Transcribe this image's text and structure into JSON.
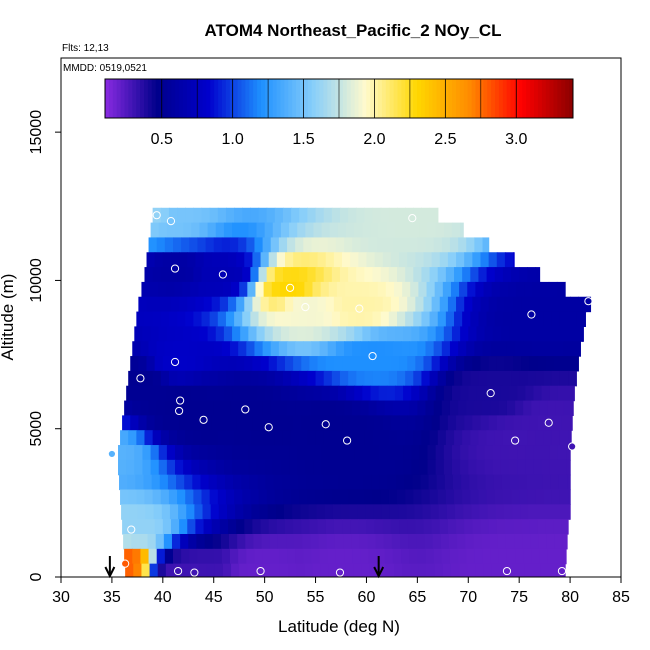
{
  "chart_data": {
    "type": "heatmap",
    "title": "ATOM4 Northeast_Pacific_2 NOy_CL",
    "flights_label": "Flts: 12,13",
    "mmdd_label": "MMDD: 0519,0521",
    "xlabel": "Latitude (deg N)",
    "ylabel": "Altitude (m)",
    "xlim": [
      30,
      85
    ],
    "ylim": [
      0,
      17500
    ],
    "x_ticks": [
      "30",
      "35",
      "40",
      "45",
      "50",
      "55",
      "60",
      "65",
      "70",
      "75",
      "80",
      "85"
    ],
    "y_ticks": [
      "0",
      "5000",
      "10000",
      "15000"
    ],
    "colorbar": {
      "range": [
        0.1,
        3.4
      ],
      "ticks": [
        "0.5",
        "1.0",
        "1.5",
        "2.0",
        "2.5",
        "3.0"
      ],
      "colors": [
        "#8a2be2",
        "#00008b",
        "#0000cd",
        "#1e90ff",
        "#87cefa",
        "#fffacd",
        "#ffd700",
        "#ff8c00",
        "#ff0000",
        "#8b0000"
      ]
    },
    "arrows_lat": [
      34.8,
      61.2
    ],
    "curtain_rows": [
      {
        "alt": 12200,
        "lat_start": 39.0,
        "lat_end": 67.0
      },
      {
        "alt": 11700,
        "lat_start": 38.8,
        "lat_end": 69.5
      },
      {
        "alt": 11200,
        "lat_start": 38.6,
        "lat_end": 72.0
      },
      {
        "alt": 10700,
        "lat_start": 38.4,
        "lat_end": 74.5
      },
      {
        "alt": 10200,
        "lat_start": 38.2,
        "lat_end": 77.0
      },
      {
        "alt": 9700,
        "lat_start": 37.9,
        "lat_end": 79.5
      },
      {
        "alt": 9200,
        "lat_start": 37.6,
        "lat_end": 82.0
      },
      {
        "alt": 8700,
        "lat_start": 37.4,
        "lat_end": 81.5
      },
      {
        "alt": 8200,
        "lat_start": 37.2,
        "lat_end": 81.3
      },
      {
        "alt": 7700,
        "lat_start": 37.0,
        "lat_end": 81.0
      },
      {
        "alt": 7200,
        "lat_start": 36.8,
        "lat_end": 80.8
      },
      {
        "alt": 6700,
        "lat_start": 36.6,
        "lat_end": 80.6
      },
      {
        "alt": 6200,
        "lat_start": 36.4,
        "lat_end": 80.4
      },
      {
        "alt": 5700,
        "lat_start": 36.2,
        "lat_end": 80.3
      },
      {
        "alt": 5200,
        "lat_start": 36.0,
        "lat_end": 80.2
      },
      {
        "alt": 4700,
        "lat_start": 35.8,
        "lat_end": 80.1
      },
      {
        "alt": 4200,
        "lat_start": 35.6,
        "lat_end": 80.0
      },
      {
        "alt": 3700,
        "lat_start": 35.6,
        "lat_end": 80.0
      },
      {
        "alt": 3200,
        "lat_start": 35.7,
        "lat_end": 80.0
      },
      {
        "alt": 2700,
        "lat_start": 35.8,
        "lat_end": 80.0
      },
      {
        "alt": 2200,
        "lat_start": 35.9,
        "lat_end": 80.0
      },
      {
        "alt": 1700,
        "lat_start": 36.0,
        "lat_end": 79.8
      },
      {
        "alt": 1200,
        "lat_start": 36.1,
        "lat_end": 79.7
      },
      {
        "alt": 700,
        "lat_start": 36.2,
        "lat_end": 79.6
      },
      {
        "alt": 200,
        "lat_start": 36.3,
        "lat_end": 79.5
      }
    ],
    "sample_points": [
      {
        "lat": 39.4,
        "alt": 12200,
        "value": 1.6
      },
      {
        "lat": 64.5,
        "alt": 12100,
        "value": 1.8
      },
      {
        "lat": 40.8,
        "alt": 12000,
        "value": 1.5
      },
      {
        "lat": 41.2,
        "alt": 10400,
        "value": 0.6
      },
      {
        "lat": 45.9,
        "alt": 10200,
        "value": 0.7
      },
      {
        "lat": 52.5,
        "alt": 9750,
        "value": 2.3
      },
      {
        "lat": 54.0,
        "alt": 9100,
        "value": 1.9
      },
      {
        "lat": 59.3,
        "alt": 9050,
        "value": 2.0
      },
      {
        "lat": 81.8,
        "alt": 9300,
        "value": 0.6
      },
      {
        "lat": 76.2,
        "alt": 8850,
        "value": 0.6
      },
      {
        "lat": 37.8,
        "alt": 6700,
        "value": 0.5
      },
      {
        "lat": 41.2,
        "alt": 7250,
        "value": 0.8
      },
      {
        "lat": 60.6,
        "alt": 7450,
        "value": 1.2
      },
      {
        "lat": 72.2,
        "alt": 6200,
        "value": 0.4
      },
      {
        "lat": 41.7,
        "alt": 5950,
        "value": 0.5
      },
      {
        "lat": 41.6,
        "alt": 5600,
        "value": 0.5
      },
      {
        "lat": 48.1,
        "alt": 5650,
        "value": 0.5
      },
      {
        "lat": 44.0,
        "alt": 5300,
        "value": 0.5
      },
      {
        "lat": 50.4,
        "alt": 5050,
        "value": 0.5
      },
      {
        "lat": 56.0,
        "alt": 5150,
        "value": 0.5
      },
      {
        "lat": 58.1,
        "alt": 4600,
        "value": 0.5
      },
      {
        "lat": 74.6,
        "alt": 4600,
        "value": 0.3
      },
      {
        "lat": 77.9,
        "alt": 5200,
        "value": 0.3
      },
      {
        "lat": 80.2,
        "alt": 4400,
        "value": 0.3
      },
      {
        "lat": 35.0,
        "alt": 4150,
        "value": 1.4
      },
      {
        "lat": 36.9,
        "alt": 1600,
        "value": 1.6
      },
      {
        "lat": 36.3,
        "alt": 450,
        "value": 2.8
      },
      {
        "lat": 41.5,
        "alt": 200,
        "value": 0.3
      },
      {
        "lat": 43.1,
        "alt": 150,
        "value": 0.3
      },
      {
        "lat": 49.6,
        "alt": 200,
        "value": 0.2
      },
      {
        "lat": 57.4,
        "alt": 150,
        "value": 0.2
      },
      {
        "lat": 73.8,
        "alt": 200,
        "value": 0.2
      },
      {
        "lat": 79.2,
        "alt": 200,
        "value": 0.2
      }
    ]
  }
}
